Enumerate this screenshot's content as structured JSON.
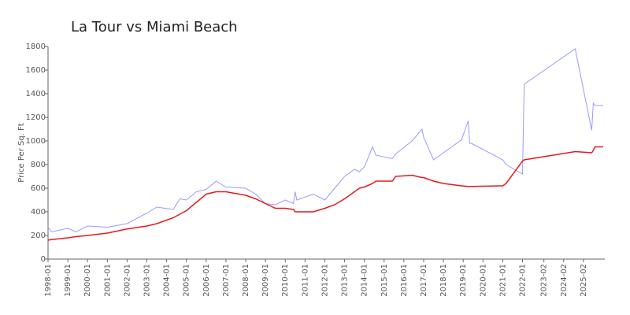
{
  "chart_data": {
    "type": "line",
    "title": "La Tour vs Miami Beach",
    "y_label": "Price Per Sq. Ft",
    "x": [
      "1998-01",
      "1998-03",
      "1999-01",
      "1999-06",
      "2000-01",
      "2001-01",
      "2002-01",
      "2003-01",
      "2003-07",
      "2004-05",
      "2004-09",
      "2005-01",
      "2005-07",
      "2006-01",
      "2006-07",
      "2007-01",
      "2008-01",
      "2008-07",
      "2009-01",
      "2009-07",
      "2010-01",
      "2010-06",
      "2010-07",
      "2010-08",
      "2011-06",
      "2012-01",
      "2012-07",
      "2013-01",
      "2013-07",
      "2013-10",
      "2014-01",
      "2014-06",
      "2014-08",
      "2015-06",
      "2015-08",
      "2016-06",
      "2016-12",
      "2017-01",
      "2017-07",
      "2018-01",
      "2018-12",
      "2019-04",
      "2019-05",
      "2019-06",
      "2021-01",
      "2021-03",
      "2022-01",
      "2022-02",
      "2024-09",
      "2025-07",
      "2025-08",
      "2025-09",
      "2026-02"
    ],
    "series": [
      {
        "color": "#9999ff",
        "values": [
          270,
          230,
          260,
          230,
          280,
          270,
          300,
          390,
          440,
          420,
          510,
          500,
          570,
          590,
          660,
          610,
          600,
          550,
          470,
          460,
          500,
          470,
          570,
          500,
          550,
          500,
          600,
          700,
          760,
          740,
          780,
          950,
          880,
          850,
          890,
          1000,
          1100,
          1030,
          840,
          900,
          1010,
          1170,
          980,
          980,
          840,
          800,
          720,
          1480,
          1780,
          1090,
          1320,
          1300,
          1300
        ]
      },
      {
        "color": "#e31a1c",
        "values": [
          160,
          165,
          180,
          190,
          200,
          220,
          255,
          280,
          300,
          350,
          380,
          410,
          480,
          550,
          570,
          570,
          540,
          510,
          470,
          430,
          430,
          420,
          400,
          400,
          400,
          430,
          460,
          510,
          570,
          600,
          610,
          640,
          660,
          660,
          700,
          710,
          690,
          690,
          660,
          640,
          620,
          615,
          615,
          615,
          620,
          640,
          830,
          840,
          910,
          900,
          920,
          950,
          950
        ]
      }
    ],
    "xlim": [
      "1998-01",
      "2026-02"
    ],
    "xticks": [
      "1998-01",
      "1999-01",
      "2000-01",
      "2001-01",
      "2002-01",
      "2003-01",
      "2004-01",
      "2005-01",
      "2006-01",
      "2007-01",
      "2008-01",
      "2009-01",
      "2010-01",
      "2011-01",
      "2012-01",
      "2013-01",
      "2014-01",
      "2015-01",
      "2016-01",
      "2017-01",
      "2018-01",
      "2019-01",
      "2020-01",
      "2021-01",
      "2022-01",
      "2023-02",
      "2024-02",
      "2025-02"
    ],
    "ylim": [
      0,
      1800
    ],
    "yticks": [
      0,
      200,
      400,
      600,
      800,
      1000,
      1200,
      1400,
      1600,
      1800
    ]
  }
}
